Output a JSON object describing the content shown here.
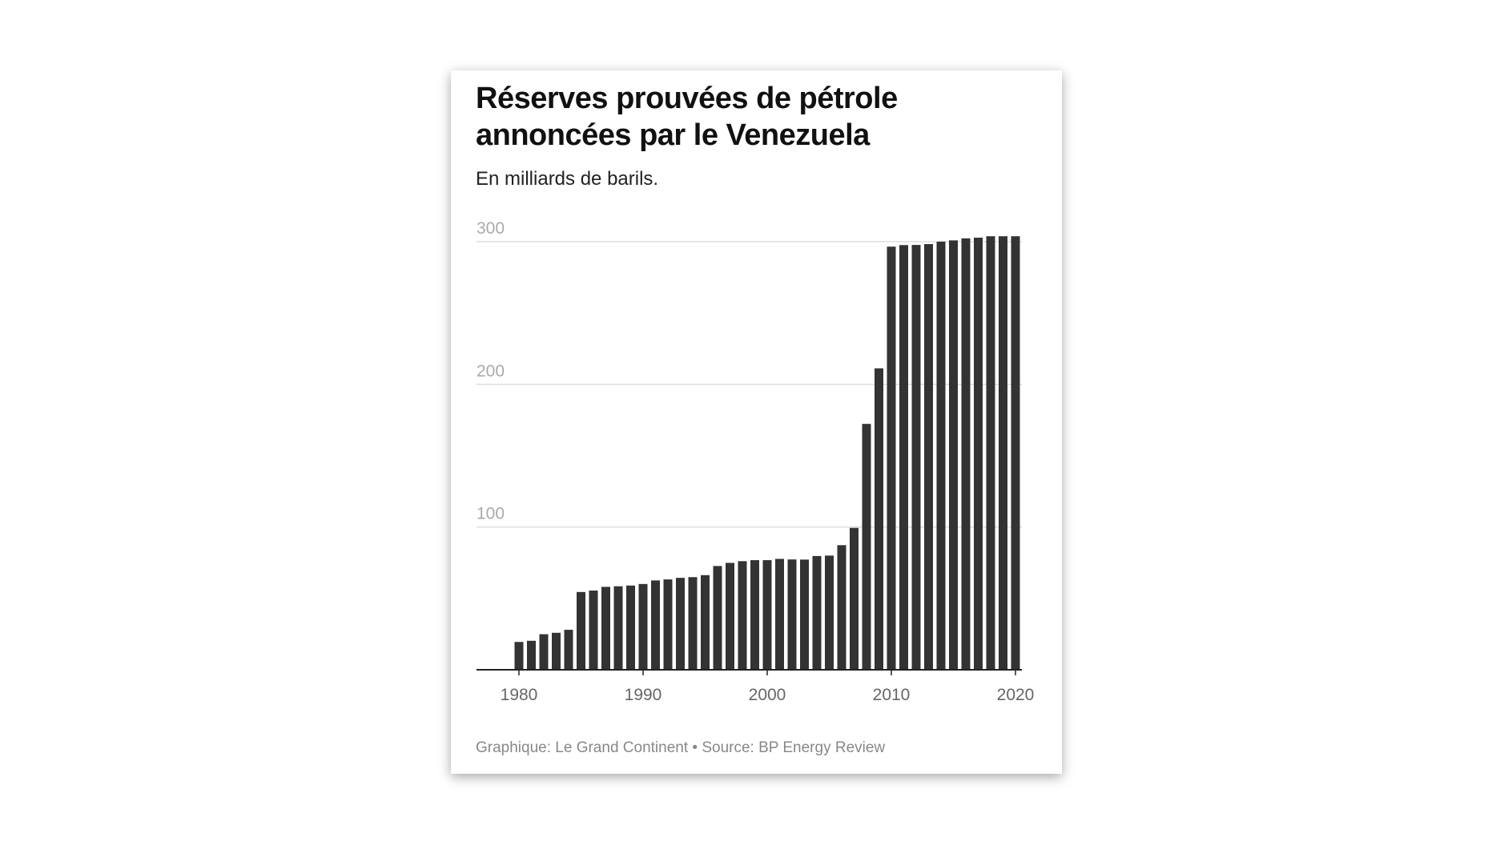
{
  "title_line1": "Réserves prouvées de pétrole",
  "title_line2": "annoncées par le Venezuela",
  "subtitle": "En milliards de barils.",
  "footer": "Graphique: Le Grand Continent • Source: BP Energy Review",
  "chart_data": {
    "type": "bar",
    "title": "Réserves prouvées de pétrole annoncées par le Venezuela",
    "subtitle": "En milliards de barils.",
    "xlabel": "",
    "ylabel": "",
    "ylim": [
      0,
      300
    ],
    "yticks": [
      100,
      200,
      300
    ],
    "xticks": [
      1980,
      1990,
      2000,
      2010,
      2020
    ],
    "grid": true,
    "bar_color": "#333333",
    "x": [
      1980,
      1981,
      1982,
      1983,
      1984,
      1985,
      1986,
      1987,
      1988,
      1989,
      1990,
      1991,
      1992,
      1993,
      1994,
      1995,
      1996,
      1997,
      1998,
      1999,
      2000,
      2001,
      2002,
      2003,
      2004,
      2005,
      2006,
      2007,
      2008,
      2009,
      2010,
      2011,
      2012,
      2013,
      2014,
      2015,
      2016,
      2017,
      2018,
      2019,
      2020
    ],
    "values": [
      19.5,
      20.3,
      24.9,
      25.9,
      28.0,
      54.5,
      55.5,
      58.1,
      58.5,
      59.0,
      60.1,
      62.6,
      63.3,
      64.4,
      64.9,
      66.3,
      72.7,
      74.9,
      76.1,
      76.8,
      76.8,
      77.7,
      77.3,
      77.2,
      79.7,
      80.0,
      87.3,
      99.4,
      172.3,
      211.2,
      296.5,
      297.6,
      297.7,
      298.3,
      300.0,
      300.9,
      302.3,
      302.8,
      303.8,
      303.8,
      303.8
    ]
  }
}
